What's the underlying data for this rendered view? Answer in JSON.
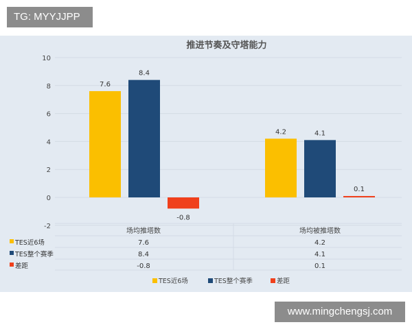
{
  "overlay": {
    "top_left": "TG: MYYJJPP",
    "bottom_right": "www.mingchengsj.com"
  },
  "chart_data": {
    "type": "bar",
    "title": "推进节奏及守塔能力",
    "categories": [
      "场均推塔数",
      "场均被推塔数"
    ],
    "series": [
      {
        "name": "TES近6场",
        "values": [
          7.6,
          4.2
        ],
        "color": "#fbbf00"
      },
      {
        "name": "TES整个赛季",
        "values": [
          8.4,
          4.1
        ],
        "color": "#1f4a78"
      },
      {
        "name": "差距",
        "values": [
          -0.8,
          0.1
        ],
        "color": "#f0401c"
      }
    ],
    "ylim": [
      -2,
      10
    ],
    "yticks": [
      "-2",
      "0",
      "2",
      "4",
      "6",
      "8",
      "10"
    ],
    "data_labels": [
      [
        "7.6",
        "4.2"
      ],
      [
        "8.4",
        "4.1"
      ],
      [
        "-0.8",
        "0.1"
      ]
    ],
    "grid": true,
    "legend": "bottom",
    "data_table": true
  }
}
